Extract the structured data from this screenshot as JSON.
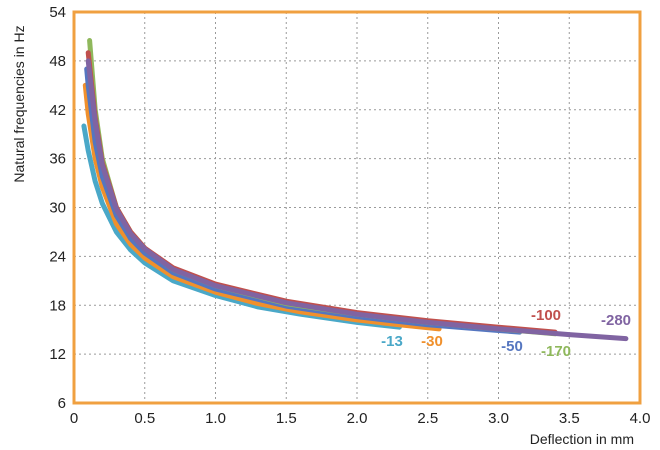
{
  "chart_data": {
    "type": "line",
    "xlabel": "Deflection in mm",
    "ylabel": "Natural frequencies in Hz",
    "xlim": [
      0,
      4.0
    ],
    "ylim": [
      6,
      54
    ],
    "xticks": [
      "0",
      "0.5",
      "1.0",
      "1.5",
      "2.0",
      "2.5",
      "3.0",
      "3.5",
      "4.0"
    ],
    "yticks": [
      "6",
      "12",
      "18",
      "24",
      "30",
      "36",
      "42",
      "48",
      "54"
    ],
    "grid": true,
    "legend": "inline labels near line ends",
    "frame_color": "#F0A040",
    "series": [
      {
        "name": "-13",
        "color": "#4AA8C8",
        "x": [
          0.07,
          0.1,
          0.15,
          0.2,
          0.3,
          0.4,
          0.5,
          0.7,
          1.0,
          1.3,
          1.6,
          2.0,
          2.3
        ],
        "y": [
          40.0,
          37.0,
          33.2,
          30.5,
          27.0,
          24.8,
          23.2,
          21.0,
          19.2,
          17.8,
          16.9,
          15.9,
          15.3
        ]
      },
      {
        "name": "-30",
        "color": "#F0902C",
        "x": [
          0.08,
          0.1,
          0.15,
          0.2,
          0.3,
          0.4,
          0.5,
          0.7,
          1.0,
          1.3,
          1.6,
          2.0,
          2.3,
          2.58
        ],
        "y": [
          45.0,
          41.5,
          36.0,
          32.5,
          28.0,
          25.5,
          23.8,
          21.5,
          19.6,
          18.2,
          17.2,
          16.2,
          15.6,
          15.1
        ]
      },
      {
        "name": "-50",
        "color": "#5576C0",
        "x": [
          0.09,
          0.1,
          0.15,
          0.2,
          0.3,
          0.4,
          0.5,
          0.7,
          1.0,
          1.5,
          2.0,
          2.5,
          3.0,
          3.15
        ],
        "y": [
          47.0,
          45.0,
          38.0,
          33.8,
          29.0,
          26.2,
          24.4,
          22.0,
          20.0,
          17.9,
          16.6,
          15.6,
          14.9,
          14.7
        ]
      },
      {
        "name": "-170",
        "color": "#8FB85C",
        "x": [
          0.11,
          0.15,
          0.2,
          0.3,
          0.4,
          0.5,
          0.7,
          1.0,
          1.5,
          2.0,
          2.5,
          3.0,
          3.4
        ],
        "y": [
          50.5,
          42.0,
          36.0,
          30.0,
          27.0,
          25.0,
          22.4,
          20.4,
          18.2,
          16.9,
          15.9,
          15.1,
          14.5
        ]
      },
      {
        "name": "-100",
        "color": "#C0504D",
        "x": [
          0.1,
          0.15,
          0.2,
          0.3,
          0.4,
          0.5,
          0.7,
          1.0,
          1.5,
          2.0,
          2.5,
          3.0,
          3.4
        ],
        "y": [
          49.0,
          41.0,
          35.5,
          30.0,
          27.0,
          25.0,
          22.6,
          20.6,
          18.5,
          17.1,
          16.1,
          15.3,
          14.7
        ]
      },
      {
        "name": "-280",
        "color": "#8064A2",
        "x": [
          0.1,
          0.15,
          0.2,
          0.3,
          0.4,
          0.5,
          0.7,
          1.0,
          1.5,
          2.0,
          2.5,
          3.0,
          3.5,
          3.9
        ],
        "y": [
          48.0,
          40.5,
          35.2,
          29.8,
          26.8,
          24.9,
          22.4,
          20.4,
          18.3,
          16.9,
          15.9,
          15.1,
          14.4,
          13.9
        ]
      }
    ]
  }
}
